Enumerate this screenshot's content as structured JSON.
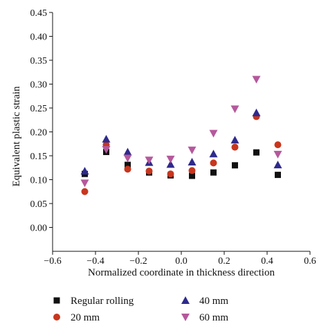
{
  "chart_data": {
    "type": "scatter",
    "title": "",
    "xlabel": "Normalized coordinate in thickness direction",
    "ylabel": "Equivalent plastic strain",
    "xlim": [
      -0.6,
      0.6
    ],
    "ylim": [
      -0.05,
      0.45
    ],
    "xticks": [
      "−0.6",
      "−0.4",
      "−0.2",
      "0.0",
      "0.2",
      "0.4",
      "0.6"
    ],
    "yticks": [
      "0.00",
      "0.05",
      "0.10",
      "0.15",
      "0.20",
      "0.25",
      "0.30",
      "0.35",
      "0.40",
      "0.45"
    ],
    "grid": false,
    "legend_position": "bottom",
    "series": [
      {
        "name": "Regular rolling",
        "marker": "square",
        "color": "#111111",
        "x": [
          -0.45,
          -0.35,
          -0.25,
          -0.15,
          -0.05,
          0.05,
          0.15,
          0.25,
          0.35,
          0.45
        ],
        "y": [
          0.112,
          0.158,
          0.131,
          0.115,
          0.109,
          0.108,
          0.115,
          0.13,
          0.157,
          0.11
        ]
      },
      {
        "name": "20 mm",
        "marker": "circle",
        "color": "#c8361e",
        "x": [
          -0.45,
          -0.35,
          -0.25,
          -0.15,
          -0.05,
          0.05,
          0.15,
          0.25,
          0.35,
          0.45
        ],
        "y": [
          0.075,
          0.173,
          0.122,
          0.118,
          0.112,
          0.119,
          0.135,
          0.168,
          0.232,
          0.173
        ]
      },
      {
        "name": "40 mm",
        "marker": "triangle-up",
        "color": "#2e2a8c",
        "x": [
          -0.45,
          -0.35,
          -0.25,
          -0.15,
          -0.05,
          0.05,
          0.15,
          0.25,
          0.35,
          0.45
        ],
        "y": [
          0.118,
          0.185,
          0.158,
          0.136,
          0.132,
          0.137,
          0.154,
          0.183,
          0.24,
          0.131
        ]
      },
      {
        "name": "60 mm",
        "marker": "triangle-down",
        "color": "#b5589c",
        "x": [
          -0.45,
          -0.35,
          -0.25,
          -0.15,
          -0.05,
          0.05,
          0.15,
          0.25,
          0.35,
          0.45
        ],
        "y": [
          0.093,
          0.163,
          0.145,
          0.141,
          0.143,
          0.162,
          0.197,
          0.248,
          0.31,
          0.153
        ]
      }
    ],
    "legend": [
      {
        "label": "Regular rolling",
        "marker": "square",
        "color": "#111111"
      },
      {
        "label": "40 mm",
        "marker": "triangle-up",
        "color": "#2e2a8c"
      },
      {
        "label": "20 mm",
        "marker": "circle",
        "color": "#c8361e"
      },
      {
        "label": "60 mm",
        "marker": "triangle-down",
        "color": "#b5589c"
      }
    ]
  }
}
